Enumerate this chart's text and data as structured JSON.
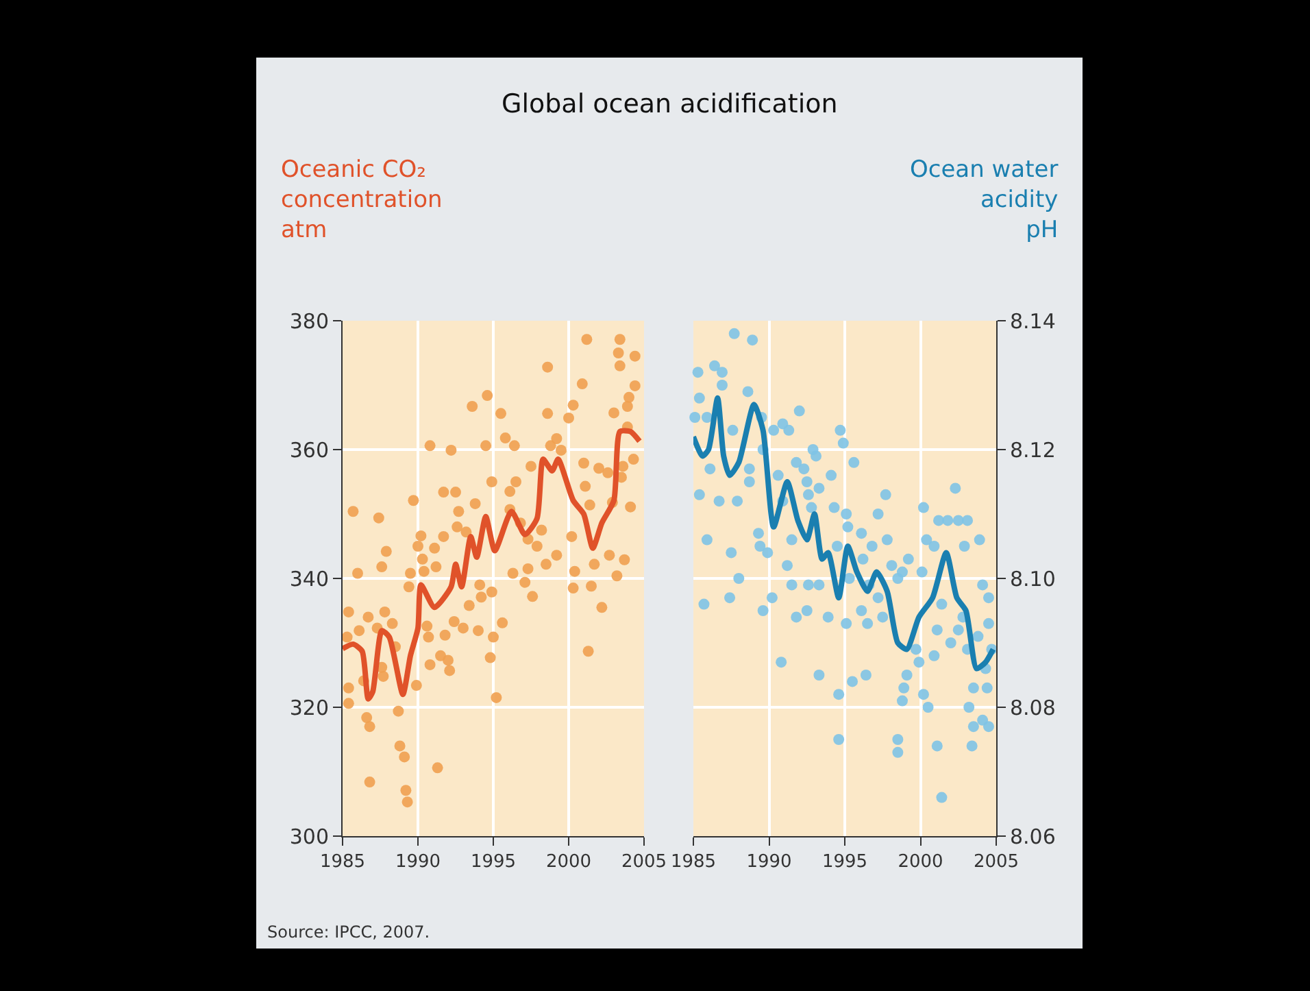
{
  "chart_data": [
    {
      "type": "scatter",
      "title": "Global ocean acidification",
      "ylabel": "Oceanic CO₂\nconcentration\natm",
      "annotations": [
        "Source: IPCC, 2007."
      ],
      "xlim": [
        1985,
        2005
      ],
      "xticks": [
        1985,
        1990,
        1995,
        2000,
        2005
      ],
      "ylim": [
        300,
        380
      ],
      "yticks": [
        300,
        320,
        340,
        360,
        380
      ],
      "grid": true,
      "series": [
        {
          "marker": "circle",
          "color": "#f0a050",
          "x": [
            1985.7,
            1986.0,
            1985.4,
            1985.3,
            1985.4,
            1985.4,
            1986.1,
            1986.7,
            1986.4,
            1986.6,
            1986.8,
            1986.8,
            1987.4,
            1987.6,
            1987.9,
            1987.8,
            1987.3,
            1987.6,
            1987.7,
            1988.3,
            1988.5,
            1988.7,
            1988.8,
            1989.1,
            1989.2,
            1989.3,
            1989.4,
            1989.5,
            1989.7,
            1989.9,
            1990.0,
            1990.2,
            1990.3,
            1990.4,
            1990.6,
            1990.7,
            1990.8,
            1990.8,
            1991.3,
            1991.1,
            1991.2,
            1991.5,
            1991.7,
            1991.7,
            1991.8,
            1992.0,
            1992.1,
            1992.2,
            1992.4,
            1992.5,
            1992.6,
            1992.7,
            1993.0,
            1993.2,
            1993.4,
            1993.6,
            1993.8,
            1994.1,
            1994.2,
            1994.0,
            1994.6,
            1994.5,
            1994.9,
            1994.8,
            1995.0,
            1995.2,
            1994.9,
            1995.5,
            1995.6,
            1995.8,
            1996.1,
            1996.1,
            1996.4,
            1996.5,
            1996.3,
            1996.8,
            1997.1,
            1997.3,
            1997.3,
            1997.5,
            1997.6,
            1997.9,
            1998.2,
            1998.5,
            1998.6,
            1998.6,
            1998.8,
            1999.2,
            1999.2,
            1999.5,
            2000.0,
            2000.2,
            2000.3,
            2000.3,
            2000.4,
            2000.9,
            2001.0,
            2001.1,
            2001.2,
            2001.3,
            2001.4,
            2001.5,
            2001.7,
            2002.0,
            2002.2,
            2002.6,
            2002.7,
            2002.9,
            2003.0,
            2003.2,
            2003.4,
            2003.3,
            2003.4,
            2003.5,
            2003.6,
            2003.7,
            2003.9,
            2004.0,
            2004.1,
            2004.3,
            2004.4,
            2004.4,
            2003.9
          ],
          "values": [
            350.4,
            340.8,
            334.8,
            330.9,
            323.0,
            320.6,
            331.9,
            334.0,
            324.1,
            318.4,
            317.0,
            308.4,
            349.4,
            341.8,
            344.2,
            334.8,
            332.3,
            326.2,
            324.8,
            333.0,
            329.4,
            319.4,
            314.0,
            312.3,
            307.1,
            305.3,
            338.7,
            340.8,
            352.1,
            323.4,
            345.0,
            346.6,
            343.0,
            341.1,
            332.6,
            330.9,
            360.6,
            326.6,
            310.6,
            344.7,
            341.8,
            328.0,
            346.5,
            353.4,
            331.2,
            327.3,
            325.7,
            359.9,
            333.3,
            353.4,
            348.0,
            350.4,
            332.3,
            347.2,
            335.8,
            366.7,
            351.6,
            339.0,
            337.1,
            331.9,
            368.4,
            360.6,
            337.9,
            327.7,
            330.9,
            321.5,
            355.0,
            365.6,
            333.1,
            361.8,
            353.5,
            350.7,
            360.6,
            355.0,
            340.8,
            348.6,
            339.4,
            346.1,
            341.5,
            357.4,
            337.2,
            345.0,
            347.5,
            342.2,
            372.8,
            365.6,
            360.6,
            361.7,
            343.6,
            359.9,
            364.9,
            346.5,
            366.9,
            338.5,
            341.1,
            370.2,
            357.9,
            354.3,
            377.1,
            328.7,
            351.4,
            338.8,
            342.2,
            357.1,
            335.5,
            356.4,
            343.6,
            351.8,
            365.7,
            340.4,
            377.1,
            375.0,
            373.0,
            355.7,
            357.4,
            342.9,
            366.7,
            368.1,
            351.1,
            358.5,
            374.5,
            369.9,
            363.5
          ]
        },
        {
          "type": "line",
          "color": "#e0522a",
          "x": [
            1985.0,
            1985.7,
            1986.3,
            1986.7,
            1987.0,
            1987.6,
            1988.1,
            1989.0,
            1989.5,
            1990.0,
            1990.2,
            1991.1,
            1992.2,
            1992.5,
            1992.9,
            1993.5,
            1993.9,
            1994.5,
            1995.1,
            1996.2,
            1997.1,
            1997.9,
            1998.3,
            1998.9,
            1999.3,
            2000.3,
            2001.0,
            2001.6,
            2002.2,
            2003.0,
            2003.4,
            2004.1,
            2004.7
          ],
          "values": [
            329.1,
            329.8,
            328.7,
            321.3,
            322.4,
            331.9,
            330.9,
            322.0,
            328.0,
            332.3,
            339.0,
            335.5,
            338.7,
            342.2,
            338.7,
            346.5,
            343.3,
            349.6,
            344.3,
            350.4,
            346.8,
            349.3,
            358.5,
            356.7,
            358.5,
            352.1,
            350.0,
            344.7,
            348.6,
            352.1,
            362.8,
            362.8,
            361.3
          ]
        }
      ]
    },
    {
      "type": "scatter",
      "y2label": "Ocean water\nacidity\npH",
      "xlim": [
        1985,
        2005
      ],
      "xticks": [
        1985,
        1990,
        1995,
        2000,
        2005
      ],
      "y2lim": [
        8.06,
        8.14
      ],
      "y2ticks": [
        8.06,
        8.08,
        {
          "value": 8.1,
          "label": "8.10"
        },
        8.12,
        8.14
      ],
      "grid": true,
      "series": [
        {
          "marker": "circle",
          "axis": "y2",
          "color": "#7ec3e6",
          "x": [
            1985.3,
            1985.4,
            1985.1,
            1987.7,
            1988.9,
            1986.4,
            1986.9,
            1986.9,
            1985.9,
            1986.1,
            1985.4,
            1986.7,
            1985.9,
            1985.7,
            1987.5,
            1987.4,
            1987.6,
            1988.0,
            1987.9,
            1988.6,
            1988.7,
            1988.7,
            1989.5,
            1989.6,
            1989.3,
            1989.4,
            1989.9,
            1989.6,
            1990.2,
            1990.3,
            1990.9,
            1991.3,
            1992.0,
            1990.6,
            1990.9,
            1991.5,
            1991.2,
            1991.5,
            1991.8,
            1990.8,
            1991.8,
            1992.3,
            1992.5,
            1992.9,
            1993.1,
            1992.6,
            1992.8,
            1992.6,
            1992.5,
            1993.3,
            1993.3,
            1993.9,
            1994.1,
            1994.3,
            1994.5,
            1994.7,
            1994.9,
            1995.1,
            1995.2,
            1995.3,
            1995.1,
            1995.6,
            1996.1,
            1996.2,
            1996.1,
            1996.5,
            1996.6,
            1996.8,
            1997.2,
            1997.7,
            1997.2,
            1997.5,
            1997.8,
            1998.1,
            1998.5,
            1998.8,
            1999.2,
            1999.7,
            1999.9,
            1999.1,
            1998.9,
            1998.8,
            1994.6,
            1993.3,
            1995.5,
            1996.4,
            1998.5,
            1998.5,
            1994.6,
            2000.1,
            2000.2,
            2000.4,
            2000.9,
            2001.2,
            2001.8,
            2002.3,
            2002.5,
            2003.1,
            2002.9,
            2003.9,
            2001.4,
            2001.1,
            2000.9,
            2000.2,
            2000.5,
            2001.1,
            2001.4,
            2002.0,
            2002.5,
            2002.8,
            2003.1,
            2003.2,
            2003.5,
            2003.4,
            2003.5,
            2003.8,
            2004.1,
            2004.1,
            2004.5,
            2004.5,
            2004.4,
            2004.5,
            2004.3,
            2004.7
          ],
          "values": [
            8.132,
            8.128,
            8.125,
            8.138,
            8.137,
            8.133,
            8.132,
            8.13,
            8.125,
            8.117,
            8.113,
            8.112,
            8.106,
            8.096,
            8.104,
            8.097,
            8.123,
            8.1,
            8.112,
            8.129,
            8.117,
            8.115,
            8.125,
            8.12,
            8.107,
            8.105,
            8.104,
            8.095,
            8.097,
            8.123,
            8.124,
            8.123,
            8.126,
            8.116,
            8.112,
            8.106,
            8.102,
            8.099,
            8.094,
            8.087,
            8.118,
            8.117,
            8.115,
            8.12,
            8.119,
            8.113,
            8.111,
            8.099,
            8.095,
            8.114,
            8.099,
            8.094,
            8.116,
            8.111,
            8.105,
            8.123,
            8.121,
            8.11,
            8.108,
            8.1,
            8.093,
            8.118,
            8.107,
            8.103,
            8.095,
            8.093,
            8.099,
            8.105,
            8.11,
            8.113,
            8.097,
            8.094,
            8.106,
            8.102,
            8.1,
            8.101,
            8.103,
            8.089,
            8.087,
            8.085,
            8.083,
            8.081,
            8.082,
            8.085,
            8.084,
            8.085,
            8.075,
            8.073,
            8.075,
            8.101,
            8.111,
            8.106,
            8.105,
            8.109,
            8.109,
            8.114,
            8.109,
            8.109,
            8.105,
            8.106,
            8.096,
            8.092,
            8.088,
            8.082,
            8.08,
            8.074,
            8.066,
            8.09,
            8.092,
            8.094,
            8.089,
            8.08,
            8.077,
            8.074,
            8.083,
            8.091,
            8.099,
            8.078,
            8.097,
            8.093,
            8.083,
            8.077,
            8.086,
            8.089
          ]
        },
        {
          "type": "line",
          "axis": "y2",
          "color": "#1a7fb0",
          "x": [
            1985.0,
            1985.6,
            1986.0,
            1986.6,
            1987.0,
            1987.4,
            1988.0,
            1989.0,
            1989.6,
            1990.3,
            1991.2,
            1991.9,
            1992.5,
            1993.0,
            1993.5,
            1993.9,
            1994.6,
            1995.2,
            1995.8,
            1996.5,
            1997.1,
            1997.8,
            1998.5,
            1999.1,
            1999.9,
            2000.8,
            2001.7,
            2002.4,
            2003.0,
            2003.7,
            2004.3,
            2004.8
          ],
          "values": [
            8.122,
            8.119,
            8.12,
            8.128,
            8.119,
            8.116,
            8.118,
            8.127,
            8.123,
            8.108,
            8.115,
            8.109,
            8.106,
            8.11,
            8.103,
            8.104,
            8.097,
            8.105,
            8.101,
            8.098,
            8.101,
            8.098,
            8.09,
            8.089,
            8.094,
            8.097,
            8.104,
            8.097,
            8.095,
            8.086,
            8.087,
            8.089
          ]
        }
      ]
    }
  ]
}
